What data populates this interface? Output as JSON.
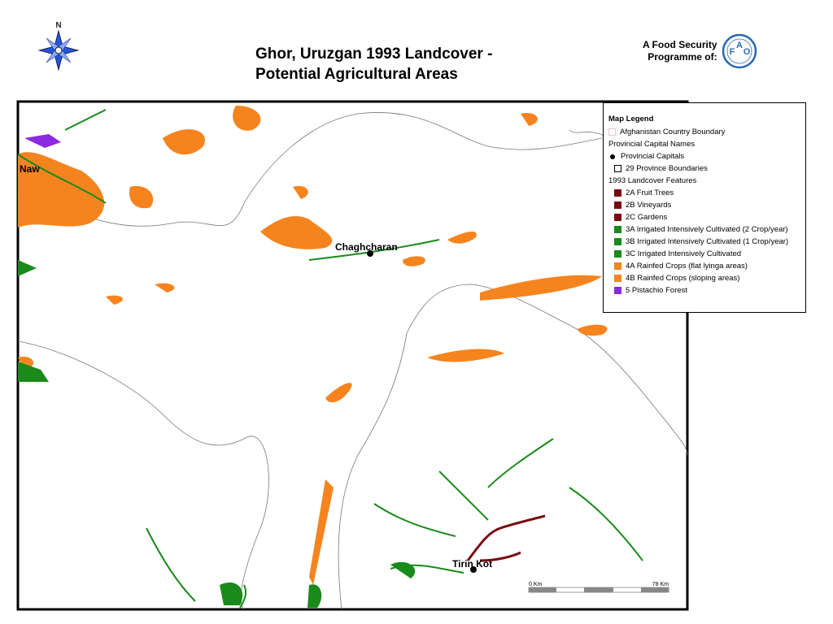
{
  "header": {
    "title_lines": [
      "Ghor, Uruzgan 1993 Landcover -",
      "Potential Agricultural Areas"
    ],
    "compass": "N",
    "programme_lines": [
      "A Food Security",
      "Programme of:"
    ],
    "logo_letters": [
      "F",
      "A",
      "O"
    ]
  },
  "map": {
    "places": [
      "Naw",
      "Chaghcharan",
      "Tirin Kot"
    ],
    "scale_labels": [
      "0 Km",
      "78 Km"
    ]
  },
  "legend": {
    "title": "Map Legend",
    "items": [
      {
        "label": "Afghanistan Country Boundary",
        "swatch": "outline",
        "color": "#e8c8d0"
      },
      {
        "label": "Provincial Capital Names",
        "swatch": "none",
        "color": "#000000"
      },
      {
        "label": "Provincial Capitals",
        "swatch": "dot",
        "color": "#000000"
      },
      {
        "label": "29 Province Boundaries",
        "swatch": "outline",
        "color": "#000000"
      },
      {
        "label": "1993 Landcover Features",
        "swatch": "none",
        "color": "#000000"
      },
      {
        "label": "2A Fruit Trees",
        "swatch": "box",
        "color": "#7a0a10"
      },
      {
        "label": "2B Vineyards",
        "swatch": "box",
        "color": "#7a0a10"
      },
      {
        "label": "2C Gardens",
        "swatch": "box",
        "color": "#7a0a10"
      },
      {
        "label": "3A Irrigated Intensively Cultivated (2 Crop/year)",
        "swatch": "box",
        "color": "#1a8a1a"
      },
      {
        "label": "3B Irrigated Intensively Cultivated (1 Crop/year)",
        "swatch": "box",
        "color": "#1a8a1a"
      },
      {
        "label": "3C Irrigated Intensively Cultivated",
        "swatch": "box",
        "color": "#1a8a1a"
      },
      {
        "label": "4A Rainfed Crops (flat lyinga areas)",
        "swatch": "box",
        "color": "#f5841f"
      },
      {
        "label": "4B Rainfed Crops (sloping areas)",
        "swatch": "box",
        "color": "#f5841f"
      },
      {
        "label": "5 Pistachio Forest",
        "swatch": "box",
        "color": "#8a2be2"
      }
    ]
  }
}
